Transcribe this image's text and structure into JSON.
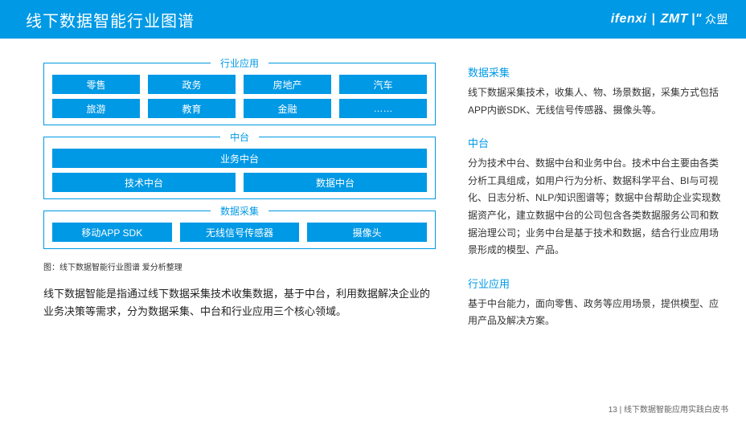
{
  "brandColor": "#0099e5",
  "header": {
    "title": "线下数据智能行业图谱",
    "logoA": "ifenxi",
    "logoSep": "|",
    "logoB": "ZMT",
    "logoB2": "|\"",
    "logoCn": "众盟"
  },
  "diagram": {
    "groups": [
      {
        "label": "行业应用",
        "rows": [
          [
            "零售",
            "政务",
            "房地产",
            "汽车"
          ],
          [
            "旅游",
            "教育",
            "金融",
            "……"
          ]
        ]
      },
      {
        "label": "中台",
        "rows": [
          [
            "业务中台"
          ],
          [
            "技术中台",
            "数据中台"
          ]
        ]
      },
      {
        "label": "数据采集",
        "rows": [
          [
            "移动APP SDK",
            "无线信号传感器",
            "摄像头"
          ]
        ]
      }
    ],
    "attribution": "图：线下数据智能行业图谱  爱分析整理",
    "summary": "线下数据智能是指通过线下数据采集技术收集数据，基于中台，利用数据解决企业的业务决策等需求，分为数据采集、中台和行业应用三个核心领域。"
  },
  "right": {
    "sections": [
      {
        "title": "数据采集",
        "body": "线下数据采集技术，收集人、物、场景数据，采集方式包括APP内嵌SDK、无线信号传感器、摄像头等。"
      },
      {
        "title": "中台",
        "body": "分为技术中台、数据中台和业务中台。技术中台主要由各类分析工具组成，如用户行为分析、数据科学平台、BI与可视化、日志分析、NLP/知识图谱等；数据中台帮助企业实现数据资产化，建立数据中台的公司包含各类数据服务公司和数据治理公司；业务中台是基于技术和数据，结合行业应用场景形成的模型、产品。"
      },
      {
        "title": "行业应用",
        "body": "基于中台能力，面向零售、政务等应用场景，提供模型、应用产品及解决方案。"
      }
    ]
  },
  "footer": {
    "pageNum": "13",
    "docTitle": "线下数据智能应用实践白皮书"
  }
}
